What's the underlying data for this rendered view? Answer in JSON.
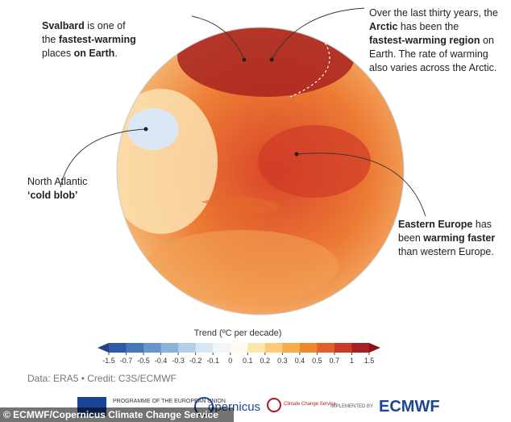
{
  "annotations": [
    {
      "lines": [
        [
          {
            "text": "Svalbard",
            "bold": true
          },
          {
            "text": " is one of"
          }
        ],
        [
          {
            "text": "the "
          },
          {
            "text": "fastest-warming",
            "bold": true
          }
        ],
        [
          {
            "text": "places "
          },
          {
            "text": "on Earth",
            "bold": true
          },
          {
            "text": "."
          }
        ]
      ]
    },
    {
      "lines": [
        [
          {
            "text": "Over the last thirty years, the"
          }
        ],
        [
          {
            "text": "Arctic",
            "bold": true
          },
          {
            "text": " has been the"
          }
        ],
        [
          {
            "text": "fastest-warming region",
            "bold": true
          },
          {
            "text": " on"
          }
        ],
        [
          {
            "text": "Earth. The rate of warming"
          }
        ],
        [
          {
            "text": "also varies across the Arctic."
          }
        ]
      ]
    },
    {
      "lines": [
        [
          {
            "text": "North Atlantic"
          }
        ],
        [
          {
            "text": "‘cold blob’",
            "bold": true
          }
        ]
      ]
    },
    {
      "lines": [
        [
          {
            "text": "Eastern Europe",
            "bold": true
          },
          {
            "text": " has"
          }
        ],
        [
          {
            "text": "been "
          },
          {
            "text": "warming faster",
            "bold": true
          }
        ],
        [
          {
            "text": "than western Europe."
          }
        ]
      ]
    }
  ],
  "colorbar": {
    "title": "Trend (ºC per decade)",
    "ticks": [
      -1.5,
      -0.7,
      -0.5,
      -0.4,
      -0.3,
      -0.2,
      -0.1,
      0,
      0.1,
      0.2,
      0.3,
      0.4,
      0.5,
      0.7,
      1,
      1.5
    ],
    "colors": [
      "#233f8c",
      "#2f5aa6",
      "#4677bb",
      "#6794cb",
      "#8cb2db",
      "#b3cee8",
      "#d6e6f3",
      "#f1f6fa",
      "#fffbf0",
      "#fde6ad",
      "#fbcd78",
      "#f6ac4a",
      "#ef872d",
      "#e2602a",
      "#cc3a26",
      "#a62121",
      "#8a1518"
    ]
  },
  "credit": "Data: ERA5 • Credit: C3S/ECMWF",
  "footer": {
    "eu": "PROGRAMME OF THE EUROPEAN UNION",
    "copernicus": "opernicus",
    "c3s": "Climate Change Service",
    "implemented": "IMPLEMENTED BY",
    "ecmwf": "ECMWF",
    "caption": "© ECMWF/Copernicus Climate Change Service"
  }
}
